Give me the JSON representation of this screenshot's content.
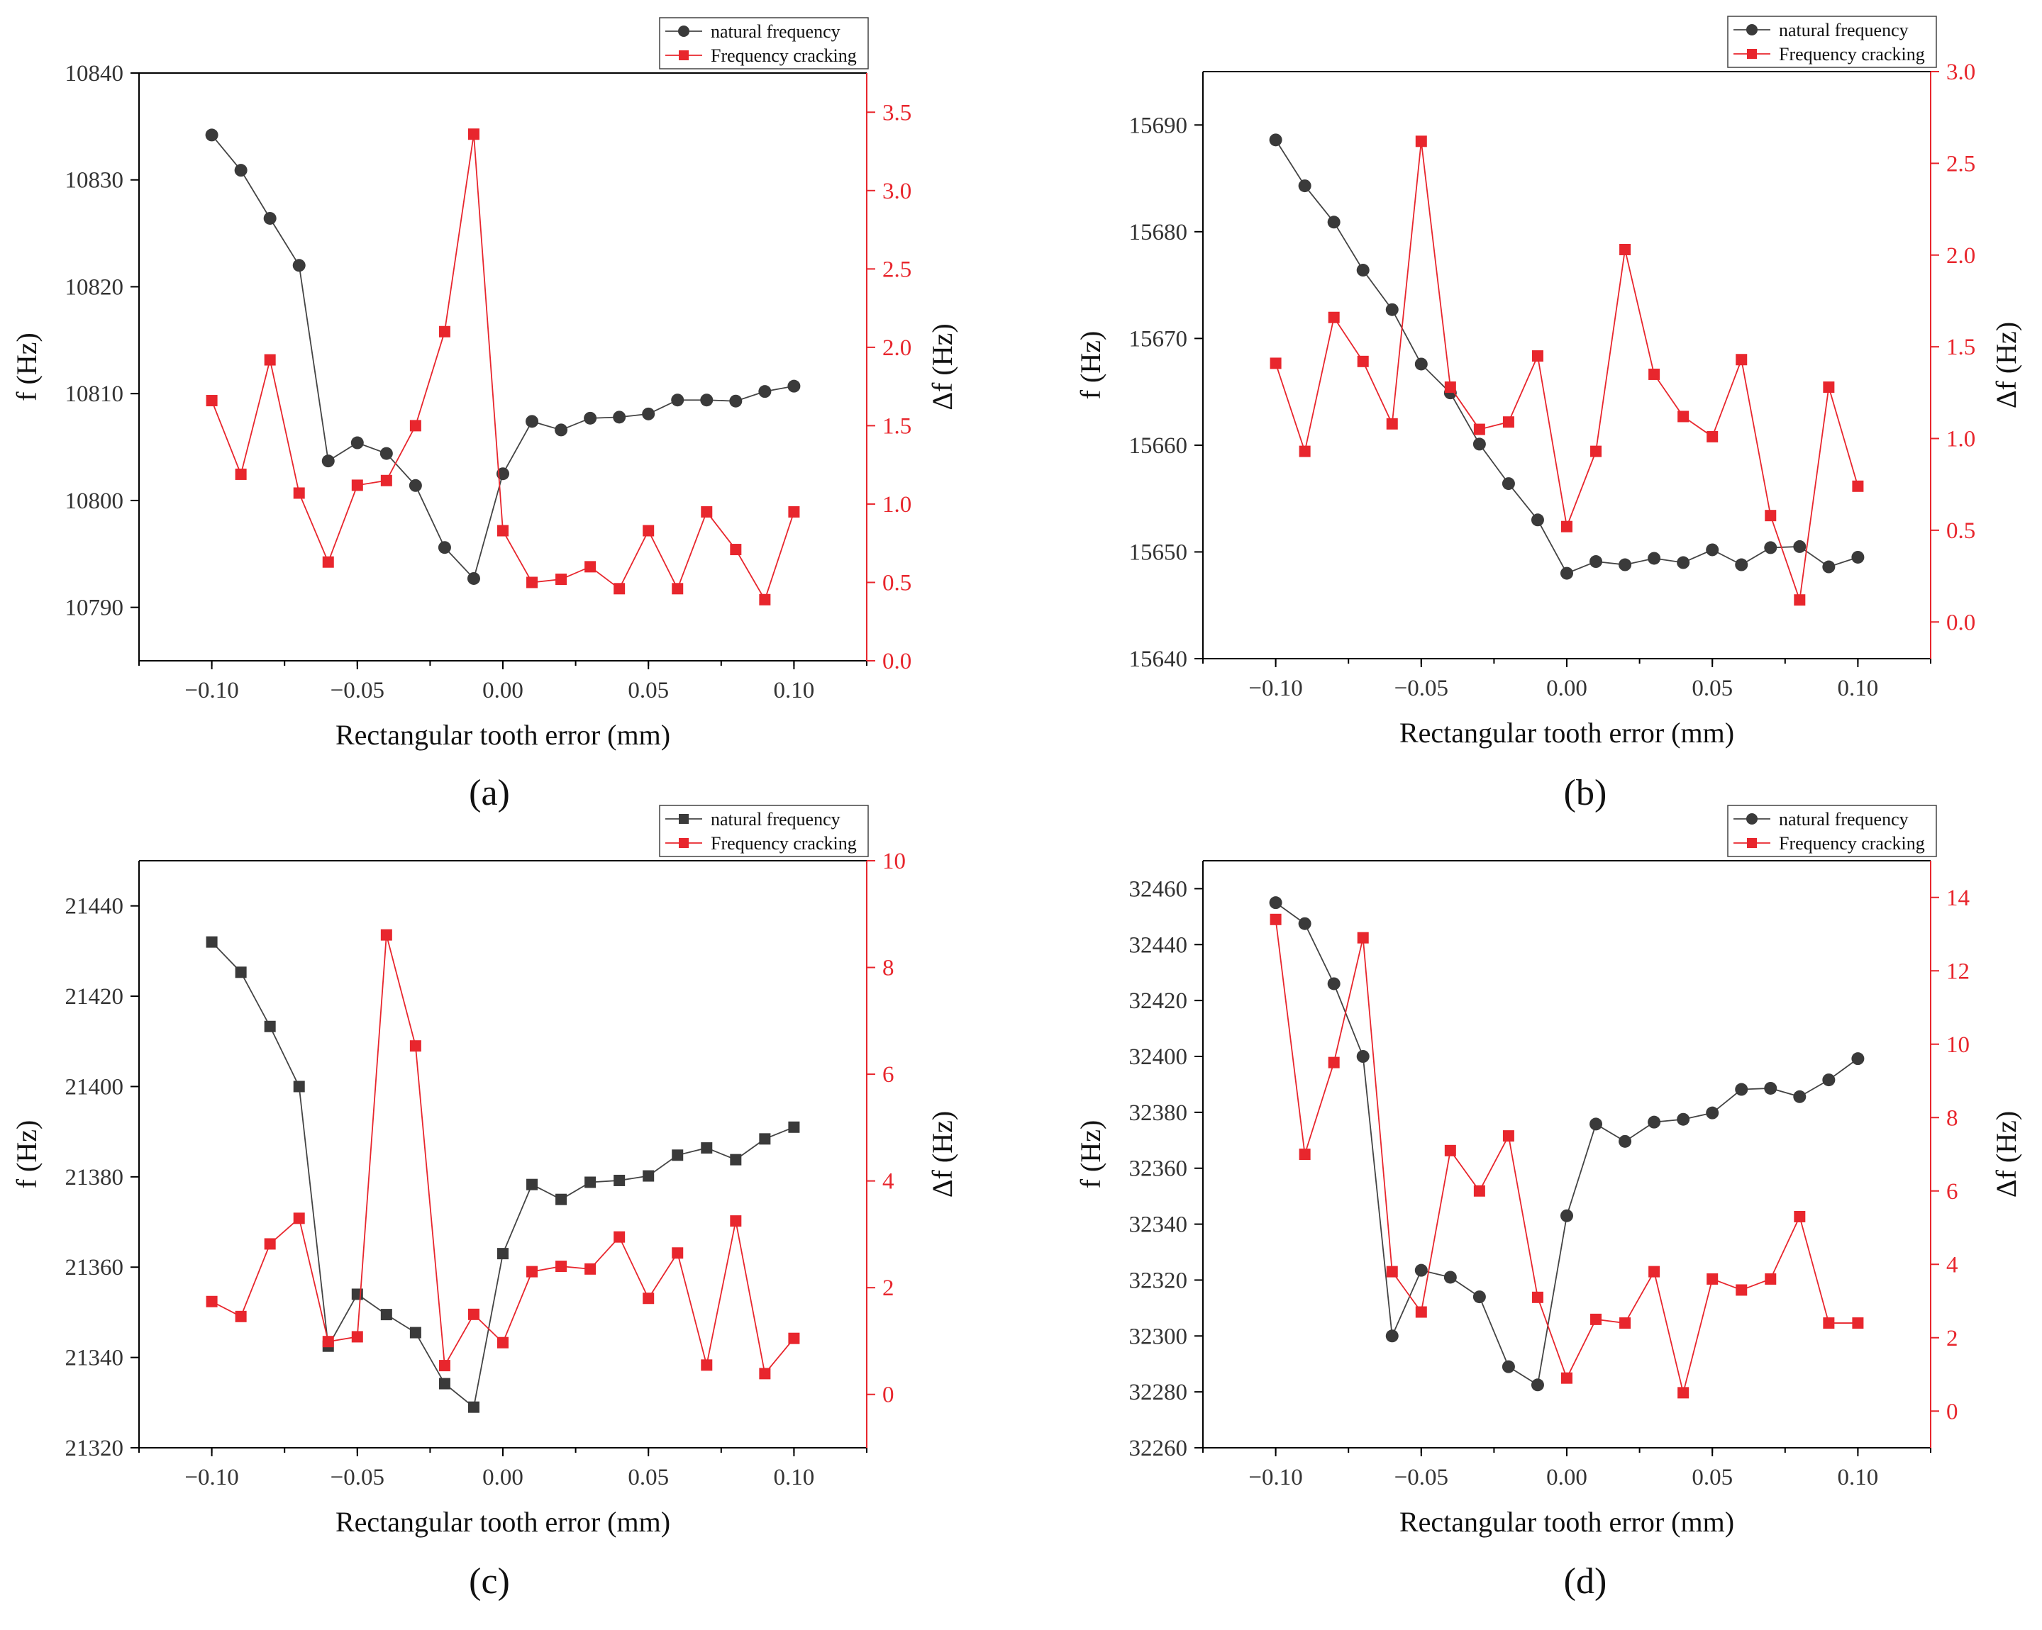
{
  "chart_data": [
    {
      "panel": "(a)",
      "type": "line",
      "x": [
        -0.1,
        -0.09,
        -0.08,
        -0.07,
        -0.06,
        -0.05,
        -0.04,
        -0.03,
        -0.02,
        -0.01,
        0.0,
        0.01,
        0.02,
        0.03,
        0.04,
        0.05,
        0.06,
        0.07,
        0.08,
        0.09,
        0.1
      ],
      "xlabel": "Rectangular tooth error (mm)",
      "xticks": [
        -0.1,
        -0.05,
        0.0,
        0.05,
        0.1
      ],
      "xtick_labels": [
        "−0.10",
        "−0.05",
        "0.00",
        "0.05",
        "0.10"
      ],
      "xlim": [
        -0.125,
        0.125
      ],
      "ylabel": "f (Hz)",
      "ylim": [
        10785,
        10840
      ],
      "yticks": [
        10790,
        10800,
        10810,
        10820,
        10830,
        10840
      ],
      "y2label": "Δf (Hz)",
      "y2lim": [
        0,
        3.75
      ],
      "y2ticks": [
        0.0,
        0.5,
        1.0,
        1.5,
        2.0,
        2.5,
        3.0,
        3.5
      ],
      "y2tick_labels": [
        "0.0",
        "0.5",
        "1.0",
        "1.5",
        "2.0",
        "2.5",
        "3.0",
        "3.5"
      ],
      "series": [
        {
          "name": "natural frequency",
          "axis": "left",
          "marker": "circle",
          "color": "#3a3a3a",
          "values": [
            10834.2,
            10830.9,
            10826.4,
            10822.0,
            10803.7,
            10805.4,
            10804.4,
            10801.4,
            10795.6,
            10792.7,
            10802.5,
            10807.4,
            10806.6,
            10807.7,
            10807.8,
            10808.1,
            10809.4,
            10809.4,
            10809.3,
            10810.2,
            10810.7
          ]
        },
        {
          "name": "Frequency cracking",
          "axis": "right",
          "marker": "square",
          "color": "#e8262d",
          "values": [
            1.66,
            1.19,
            1.92,
            1.07,
            0.63,
            1.12,
            1.15,
            1.5,
            2.1,
            3.36,
            0.83,
            0.5,
            0.52,
            0.6,
            0.46,
            0.83,
            0.46,
            0.95,
            0.71,
            0.39,
            0.95
          ]
        }
      ]
    },
    {
      "panel": "(b)",
      "type": "line",
      "x": [
        -0.1,
        -0.09,
        -0.08,
        -0.07,
        -0.06,
        -0.05,
        -0.04,
        -0.03,
        -0.02,
        -0.01,
        0.0,
        0.01,
        0.02,
        0.03,
        0.04,
        0.05,
        0.06,
        0.07,
        0.08,
        0.09,
        0.1
      ],
      "xlabel": "Rectangular tooth error (mm)",
      "xticks": [
        -0.1,
        -0.05,
        0.0,
        0.05,
        0.1
      ],
      "xtick_labels": [
        "−0.10",
        "−0.05",
        "0.00",
        "0.05",
        "0.10"
      ],
      "xlim": [
        -0.125,
        0.125
      ],
      "ylabel": "f (Hz)",
      "ylim": [
        15640,
        15695
      ],
      "yticks": [
        15640,
        15650,
        15660,
        15670,
        15680,
        15690
      ],
      "y2label": "Δf (Hz)",
      "y2lim": [
        -0.2,
        3.0
      ],
      "y2ticks": [
        0.0,
        0.5,
        1.0,
        1.5,
        2.0,
        2.5,
        3.0
      ],
      "y2tick_labels": [
        "0.0",
        "0.5",
        "1.0",
        "1.5",
        "2.0",
        "2.5",
        "3.0"
      ],
      "series": [
        {
          "name": "natural frequency",
          "axis": "left",
          "marker": "circle",
          "color": "#3a3a3a",
          "values": [
            15688.6,
            15684.3,
            15680.9,
            15676.4,
            15672.7,
            15667.6,
            15664.9,
            15660.1,
            15656.4,
            15653.0,
            15648.0,
            15649.1,
            15648.8,
            15649.4,
            15649.0,
            15650.2,
            15648.8,
            15650.4,
            15650.5,
            15648.6,
            15649.5
          ]
        },
        {
          "name": "Frequency cracking",
          "axis": "right",
          "marker": "square",
          "color": "#e8262d",
          "values": [
            1.41,
            0.93,
            1.66,
            1.42,
            1.08,
            2.62,
            1.28,
            1.05,
            1.09,
            1.45,
            0.52,
            0.93,
            2.03,
            1.35,
            1.12,
            1.01,
            1.43,
            0.58,
            0.12,
            1.28,
            0.74
          ]
        }
      ]
    },
    {
      "panel": "(c)",
      "type": "line",
      "x": [
        -0.1,
        -0.09,
        -0.08,
        -0.07,
        -0.06,
        -0.05,
        -0.04,
        -0.03,
        -0.02,
        -0.01,
        0.0,
        0.01,
        0.02,
        0.03,
        0.04,
        0.05,
        0.06,
        0.07,
        0.08,
        0.09,
        0.1
      ],
      "xlabel": "Rectangular tooth error (mm)",
      "xticks": [
        -0.1,
        -0.05,
        0.0,
        0.05,
        0.1
      ],
      "xtick_labels": [
        "−0.10",
        "−0.05",
        "0.00",
        "0.05",
        "0.10"
      ],
      "xlim": [
        -0.125,
        0.125
      ],
      "ylabel": "f (Hz)",
      "ylim": [
        21320,
        21450
      ],
      "yticks": [
        21320,
        21340,
        21360,
        21380,
        21400,
        21420,
        21440
      ],
      "y2label": "Δf (Hz)",
      "y2lim": [
        -1,
        10
      ],
      "y2ticks": [
        0,
        2,
        4,
        6,
        8,
        10
      ],
      "y2tick_labels": [
        "0",
        "2",
        "4",
        "6",
        "8",
        "10"
      ],
      "series": [
        {
          "name": "natural frequency",
          "axis": "left",
          "marker": "square",
          "color": "#3a3a3a",
          "values": [
            21432.0,
            21425.3,
            21413.3,
            21400.0,
            21342.5,
            21354.0,
            21349.5,
            21345.5,
            21334.2,
            21329.0,
            21363.0,
            21378.3,
            21375.0,
            21378.8,
            21379.2,
            21380.2,
            21384.8,
            21386.4,
            21383.8,
            21388.4,
            21391.0
          ]
        },
        {
          "name": "Frequency cracking",
          "axis": "right",
          "marker": "square",
          "color": "#e8262d",
          "values": [
            1.74,
            1.46,
            2.82,
            3.3,
            0.99,
            1.08,
            8.61,
            6.53,
            0.54,
            1.5,
            0.97,
            2.3,
            2.4,
            2.35,
            2.95,
            1.8,
            2.65,
            0.55,
            3.25,
            0.39,
            1.05
          ]
        }
      ]
    },
    {
      "panel": "(d)",
      "type": "line",
      "x": [
        -0.1,
        -0.09,
        -0.08,
        -0.07,
        -0.06,
        -0.05,
        -0.04,
        -0.03,
        -0.02,
        -0.01,
        0.0,
        0.01,
        0.02,
        0.03,
        0.04,
        0.05,
        0.06,
        0.07,
        0.08,
        0.09,
        0.1
      ],
      "xlabel": "Rectangular tooth error (mm)",
      "xticks": [
        -0.1,
        -0.05,
        0.0,
        0.05,
        0.1
      ],
      "xtick_labels": [
        "−0.10",
        "−0.05",
        "0.00",
        "0.05",
        "0.10"
      ],
      "xlim": [
        -0.125,
        0.125
      ],
      "ylabel": "f (Hz)",
      "ylim": [
        32260,
        32470
      ],
      "yticks": [
        32260,
        32280,
        32300,
        32320,
        32340,
        32360,
        32380,
        32400,
        32420,
        32440,
        32460
      ],
      "y2label": "Δf (Hz)",
      "y2lim": [
        -1,
        15
      ],
      "y2ticks": [
        0,
        2,
        4,
        6,
        8,
        10,
        12,
        14
      ],
      "y2tick_labels": [
        "0",
        "2",
        "4",
        "6",
        "8",
        "10",
        "12",
        "14"
      ],
      "series": [
        {
          "name": "natural frequency",
          "axis": "left",
          "marker": "circle",
          "color": "#3a3a3a",
          "values": [
            32455.0,
            32447.5,
            32426.0,
            32400.0,
            32300.0,
            32323.5,
            32321.0,
            32314.0,
            32289.0,
            32282.5,
            32343.0,
            32375.8,
            32369.6,
            32376.5,
            32377.5,
            32379.8,
            32388.2,
            32388.6,
            32385.6,
            32391.6,
            32399.2
          ]
        },
        {
          "name": "Frequency cracking",
          "axis": "right",
          "marker": "square",
          "color": "#e8262d",
          "values": [
            13.4,
            7.0,
            9.5,
            12.9,
            3.8,
            2.7,
            7.1,
            6.0,
            7.5,
            3.1,
            0.9,
            2.5,
            2.4,
            3.8,
            0.5,
            3.6,
            3.3,
            3.6,
            5.3,
            2.4,
            2.4
          ]
        }
      ]
    }
  ]
}
